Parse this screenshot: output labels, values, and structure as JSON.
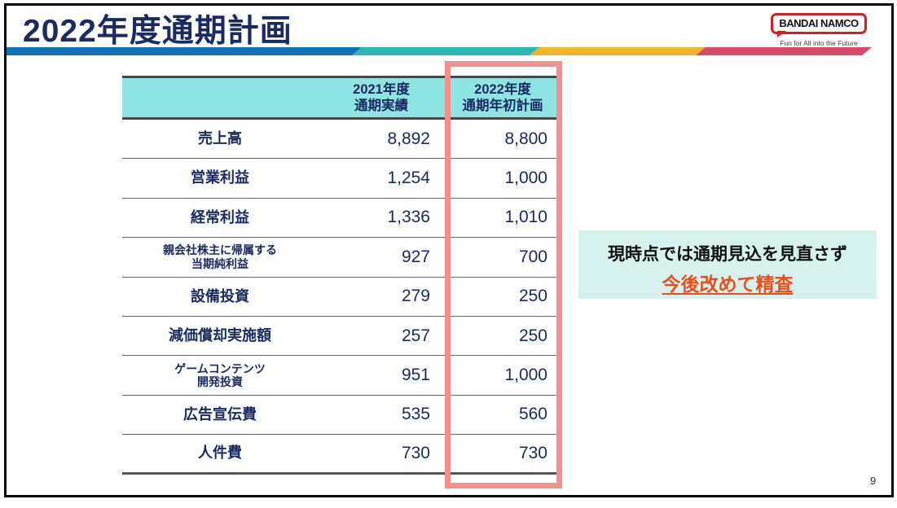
{
  "slide": {
    "title": "2022年度通期計画",
    "page_number": "9"
  },
  "logo": {
    "brand": "BANDAI NAMCO",
    "tagline": "Fun for All into the Future"
  },
  "table": {
    "header": {
      "col_label": "",
      "col_2021": "2021年度\n通期実績",
      "col_2022": "2022年度\n通期年初計画"
    },
    "rows": [
      {
        "label": "売上高",
        "fy2021": "8,892",
        "fy2022": "8,800"
      },
      {
        "label": "営業利益",
        "fy2021": "1,254",
        "fy2022": "1,000"
      },
      {
        "label": "経常利益",
        "fy2021": "1,336",
        "fy2022": "1,010"
      },
      {
        "label": "親会社株主に帰属する\n当期純利益",
        "fy2021": "927",
        "fy2022": "700"
      },
      {
        "label": "設備投資",
        "fy2021": "279",
        "fy2022": "250"
      },
      {
        "label": "減価償却実施額",
        "fy2021": "257",
        "fy2022": "250"
      },
      {
        "label": "ゲームコンテンツ\n開発投資",
        "fy2021": "951",
        "fy2022": "1,000"
      },
      {
        "label": "広告宣伝費",
        "fy2021": "535",
        "fy2022": "560"
      },
      {
        "label": "人件費",
        "fy2021": "730",
        "fy2022": "730"
      }
    ]
  },
  "annotation": {
    "line1": "現時点では通期見込を見直さず",
    "line2": "今後改めて精査"
  },
  "colors": {
    "title_navy": "#1b2a63",
    "header_teal": "#8de4e0",
    "highlight_pink": "#f4918e",
    "annotation_bg": "#d7f1ee",
    "annotation_orange": "#e8501e",
    "bar_blue": "#1272b6",
    "bar_teal": "#2cb8b0",
    "bar_yellow": "#f0b42a",
    "bar_pink": "#d94a6a",
    "logo_red": "#d41e26"
  }
}
